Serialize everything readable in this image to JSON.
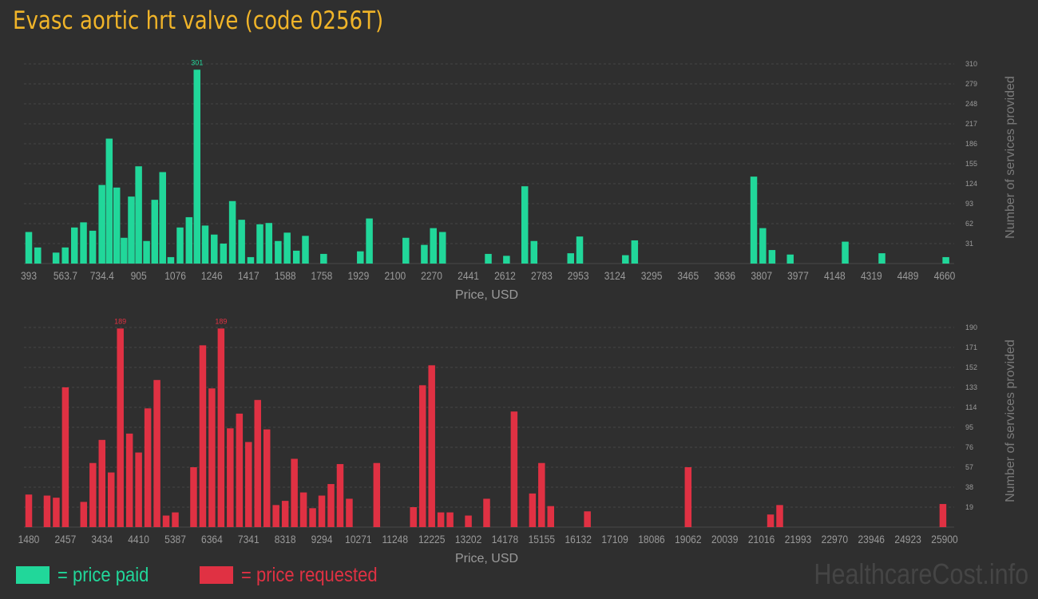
{
  "title": "Evasc aortic hrt valve (code 0256T)",
  "colors": {
    "paid": "#21d79a",
    "requested": "#e03143",
    "title": "#f0b429",
    "background": "#2f2f2f"
  },
  "legend": {
    "paid_label": "= price paid",
    "requested_label": "= price requested"
  },
  "watermark": "HealthcareCost.info",
  "chart_data": [
    {
      "type": "bar",
      "series_key": "paid",
      "xlabel": "Price, USD",
      "ylabel": "Number of services provided",
      "ylim": [
        0,
        310
      ],
      "y_ticks": [
        "31",
        "62",
        "93",
        "124",
        "155",
        "186",
        "217",
        "248",
        "279",
        "310"
      ],
      "x_ticks": [
        "393",
        "563.7",
        "734.4",
        "905",
        "1076",
        "1246",
        "1417",
        "1588",
        "1758",
        "1929",
        "2100",
        "2270",
        "2441",
        "2612",
        "2783",
        "2953",
        "3124",
        "3295",
        "3465",
        "3636",
        "3807",
        "3977",
        "4148",
        "4319",
        "4489",
        "4660"
      ],
      "xlim": [
        393,
        4660
      ],
      "bars": [
        {
          "x": 393,
          "y": 49
        },
        {
          "x": 435,
          "y": 25
        },
        {
          "x": 520,
          "y": 17
        },
        {
          "x": 563,
          "y": 25
        },
        {
          "x": 606,
          "y": 56
        },
        {
          "x": 648,
          "y": 64
        },
        {
          "x": 691,
          "y": 51
        },
        {
          "x": 734,
          "y": 122
        },
        {
          "x": 768,
          "y": 194
        },
        {
          "x": 803,
          "y": 118
        },
        {
          "x": 837,
          "y": 40
        },
        {
          "x": 871,
          "y": 104
        },
        {
          "x": 905,
          "y": 151
        },
        {
          "x": 942,
          "y": 35
        },
        {
          "x": 980,
          "y": 99
        },
        {
          "x": 1017,
          "y": 142
        },
        {
          "x": 1055,
          "y": 10
        },
        {
          "x": 1098,
          "y": 56
        },
        {
          "x": 1140,
          "y": 72
        },
        {
          "x": 1177,
          "y": 301,
          "label": "301"
        },
        {
          "x": 1215,
          "y": 59
        },
        {
          "x": 1257,
          "y": 45
        },
        {
          "x": 1300,
          "y": 31
        },
        {
          "x": 1342,
          "y": 97
        },
        {
          "x": 1385,
          "y": 68
        },
        {
          "x": 1427,
          "y": 10
        },
        {
          "x": 1470,
          "y": 61
        },
        {
          "x": 1512,
          "y": 63
        },
        {
          "x": 1555,
          "y": 35
        },
        {
          "x": 1597,
          "y": 48
        },
        {
          "x": 1640,
          "y": 20
        },
        {
          "x": 1682,
          "y": 43
        },
        {
          "x": 1767,
          "y": 15
        },
        {
          "x": 1938,
          "y": 19
        },
        {
          "x": 1980,
          "y": 70
        },
        {
          "x": 2150,
          "y": 40
        },
        {
          "x": 2236,
          "y": 29
        },
        {
          "x": 2278,
          "y": 55
        },
        {
          "x": 2321,
          "y": 49
        },
        {
          "x": 2534,
          "y": 15
        },
        {
          "x": 2619,
          "y": 12
        },
        {
          "x": 2704,
          "y": 120
        },
        {
          "x": 2747,
          "y": 35
        },
        {
          "x": 2918,
          "y": 16
        },
        {
          "x": 2960,
          "y": 42
        },
        {
          "x": 3173,
          "y": 13
        },
        {
          "x": 3216,
          "y": 36
        },
        {
          "x": 3771,
          "y": 135
        },
        {
          "x": 3813,
          "y": 55
        },
        {
          "x": 3856,
          "y": 21
        },
        {
          "x": 3941,
          "y": 14
        },
        {
          "x": 4197,
          "y": 34
        },
        {
          "x": 4368,
          "y": 16
        },
        {
          "x": 4666,
          "y": 10
        }
      ]
    },
    {
      "type": "bar",
      "series_key": "requested",
      "xlabel": "Price, USD",
      "ylabel": "Number of services provided",
      "ylim": [
        0,
        190
      ],
      "y_ticks": [
        "19",
        "38",
        "57",
        "76",
        "95",
        "114",
        "133",
        "152",
        "171",
        "190"
      ],
      "x_ticks": [
        "1480",
        "2457",
        "3434",
        "4410",
        "5387",
        "6364",
        "7341",
        "8318",
        "9294",
        "10271",
        "11248",
        "12225",
        "13202",
        "14178",
        "15155",
        "16132",
        "17109",
        "18086",
        "19062",
        "20039",
        "21016",
        "21993",
        "22970",
        "23946",
        "24923",
        "25900"
      ],
      "xlim": [
        1480,
        25900
      ],
      "bars": [
        {
          "x": 1480,
          "y": 31
        },
        {
          "x": 1969,
          "y": 30
        },
        {
          "x": 2213,
          "y": 28
        },
        {
          "x": 2457,
          "y": 133
        },
        {
          "x": 2945,
          "y": 24
        },
        {
          "x": 3190,
          "y": 61
        },
        {
          "x": 3434,
          "y": 83
        },
        {
          "x": 3678,
          "y": 52
        },
        {
          "x": 3922,
          "y": 189,
          "label": "189"
        },
        {
          "x": 4166,
          "y": 89
        },
        {
          "x": 4410,
          "y": 71
        },
        {
          "x": 4655,
          "y": 113
        },
        {
          "x": 4899,
          "y": 140
        },
        {
          "x": 5143,
          "y": 11
        },
        {
          "x": 5387,
          "y": 14
        },
        {
          "x": 5876,
          "y": 57
        },
        {
          "x": 6120,
          "y": 173
        },
        {
          "x": 6364,
          "y": 132
        },
        {
          "x": 6608,
          "y": 189,
          "label": "189"
        },
        {
          "x": 6852,
          "y": 94
        },
        {
          "x": 7097,
          "y": 108
        },
        {
          "x": 7341,
          "y": 81
        },
        {
          "x": 7585,
          "y": 121
        },
        {
          "x": 7829,
          "y": 93
        },
        {
          "x": 8073,
          "y": 21
        },
        {
          "x": 8318,
          "y": 25
        },
        {
          "x": 8562,
          "y": 65
        },
        {
          "x": 8806,
          "y": 33
        },
        {
          "x": 9050,
          "y": 18
        },
        {
          "x": 9294,
          "y": 30
        },
        {
          "x": 9539,
          "y": 41
        },
        {
          "x": 9783,
          "y": 60
        },
        {
          "x": 10027,
          "y": 27
        },
        {
          "x": 10759,
          "y": 61
        },
        {
          "x": 11736,
          "y": 19
        },
        {
          "x": 11981,
          "y": 135
        },
        {
          "x": 12225,
          "y": 154
        },
        {
          "x": 12469,
          "y": 14
        },
        {
          "x": 12713,
          "y": 14
        },
        {
          "x": 13202,
          "y": 11
        },
        {
          "x": 13690,
          "y": 27
        },
        {
          "x": 14422,
          "y": 110
        },
        {
          "x": 14911,
          "y": 32
        },
        {
          "x": 15155,
          "y": 61
        },
        {
          "x": 15399,
          "y": 20
        },
        {
          "x": 16376,
          "y": 15
        },
        {
          "x": 19062,
          "y": 57
        },
        {
          "x": 21260,
          "y": 12
        },
        {
          "x": 21504,
          "y": 21
        },
        {
          "x": 25856,
          "y": 22
        }
      ]
    }
  ]
}
